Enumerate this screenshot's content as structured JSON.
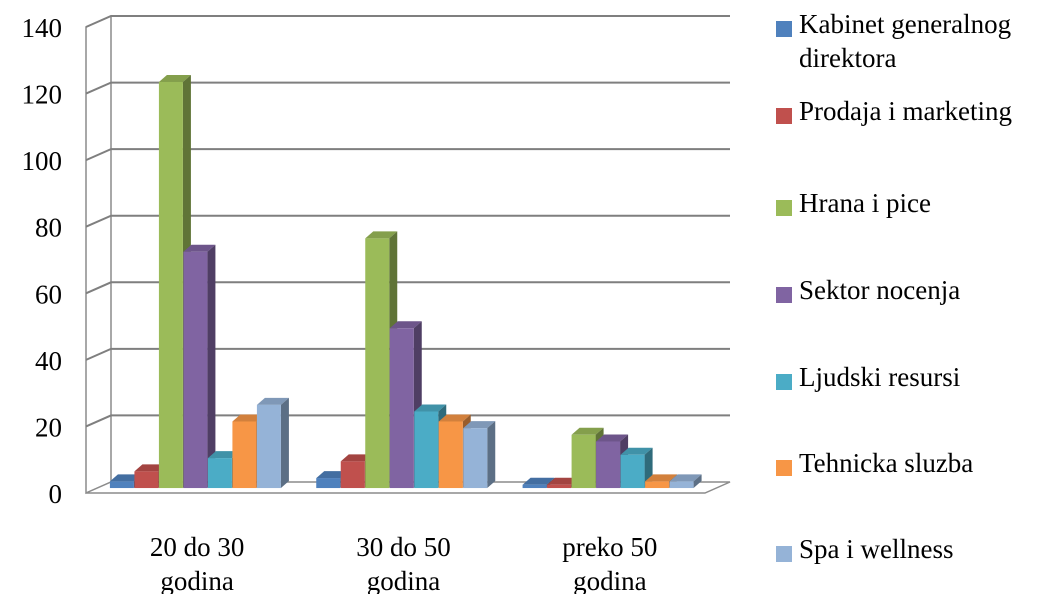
{
  "chart_data": {
    "type": "bar",
    "title": "",
    "xlabel": "",
    "ylabel": "",
    "ylim": [
      0,
      140
    ],
    "yticks": [
      0,
      20,
      40,
      60,
      80,
      100,
      120,
      140
    ],
    "grid": true,
    "three_d": true,
    "legend_position": "right",
    "categories": [
      {
        "line1": "20 do 30",
        "line2": "godina"
      },
      {
        "line1": "30 do 50",
        "line2": "godina"
      },
      {
        "line1": "preko 50",
        "line2": "godina"
      }
    ],
    "series": [
      {
        "name": "Kabinet generalnog direktora",
        "name_line1": "Kabinet generalnog",
        "name_line2": "direktora",
        "color": "#4F81BD",
        "values": [
          2,
          3,
          1
        ]
      },
      {
        "name": "Prodaja i marketing",
        "color": "#C0504D",
        "values": [
          5,
          8,
          1
        ]
      },
      {
        "name": "Hrana i pice",
        "color": "#9BBB59",
        "values": [
          122,
          75,
          16
        ]
      },
      {
        "name": "Sektor nocenja",
        "color": "#8064A2",
        "values": [
          71,
          48,
          14
        ]
      },
      {
        "name": "Ljudski resursi",
        "color": "#4BACC6",
        "values": [
          9,
          23,
          10
        ]
      },
      {
        "name": "Tehnicka sluzba",
        "color": "#F79646",
        "values": [
          20,
          20,
          2
        ]
      },
      {
        "name": "Spa i wellness",
        "color": "#95B3D7",
        "values": [
          25,
          18,
          2
        ]
      }
    ]
  }
}
